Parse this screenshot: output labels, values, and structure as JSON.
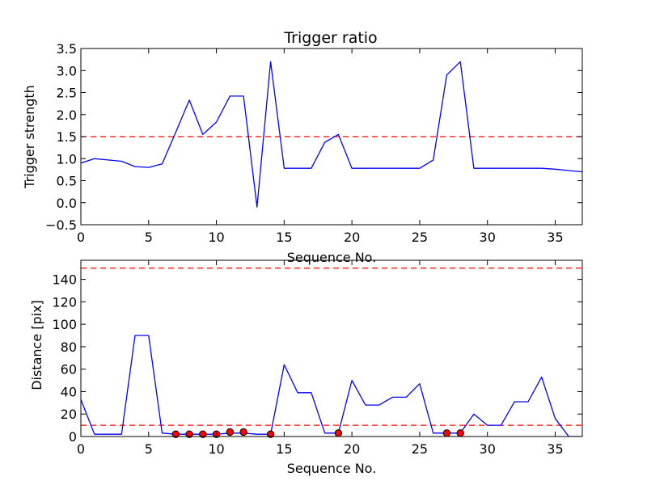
{
  "chart_data": [
    {
      "type": "line",
      "title": "Trigger ratio",
      "xlabel": "Sequence No.",
      "ylabel": "Trigger strength",
      "xlim": [
        0,
        37
      ],
      "ylim": [
        -0.5,
        3.5
      ],
      "xticks": [
        0,
        5,
        10,
        15,
        20,
        25,
        30,
        35
      ],
      "xtick_labels": [
        "0",
        "5",
        "10",
        "15",
        "20",
        "25",
        "30",
        "35"
      ],
      "yticks": [
        -0.5,
        0.0,
        0.5,
        1.0,
        1.5,
        2.0,
        2.5,
        3.0,
        3.5
      ],
      "ytick_labels": [
        "−0.5",
        "0.0",
        "0.5",
        "1.0",
        "1.5",
        "2.0",
        "2.5",
        "3.0",
        "3.5"
      ],
      "grid": false,
      "series": [
        {
          "color": "#0000ff",
          "x": [
            0,
            1,
            2,
            3,
            4,
            5,
            6,
            7,
            8,
            9,
            10,
            11,
            12,
            13,
            14,
            15,
            16,
            17,
            18,
            19,
            20,
            21,
            22,
            23,
            24,
            25,
            26,
            27,
            28,
            29,
            30,
            31,
            32,
            33,
            34,
            35,
            36,
            37
          ],
          "y": [
            0.9,
            1.0,
            0.97,
            0.94,
            0.82,
            0.8,
            0.88,
            1.6,
            2.33,
            1.55,
            1.83,
            2.42,
            2.42,
            -0.1,
            3.2,
            0.78,
            0.78,
            0.78,
            1.37,
            1.55,
            0.78,
            0.78,
            0.78,
            0.78,
            0.78,
            0.78,
            0.97,
            2.9,
            3.2,
            0.78,
            0.78,
            0.78,
            0.78,
            0.78,
            0.78,
            0.76,
            0.73,
            0.7
          ]
        }
      ],
      "reference_lines": [
        {
          "y": 1.5,
          "color": "#ff0000",
          "style": "dashed"
        }
      ]
    },
    {
      "type": "line",
      "title": "",
      "xlabel": "Sequence No.",
      "ylabel": "Distance [pix]",
      "xlim": [
        0,
        37
      ],
      "ylim": [
        0,
        157
      ],
      "xticks": [
        0,
        5,
        10,
        15,
        20,
        25,
        30,
        35
      ],
      "xtick_labels": [
        "0",
        "5",
        "10",
        "15",
        "20",
        "25",
        "30",
        "35"
      ],
      "yticks": [
        0,
        20,
        40,
        60,
        80,
        100,
        120,
        140
      ],
      "ytick_labels": [
        "0",
        "20",
        "40",
        "60",
        "80",
        "100",
        "120",
        "140"
      ],
      "grid": false,
      "series": [
        {
          "color": "#0000ff",
          "x": [
            0,
            1,
            2,
            3,
            4,
            5,
            6,
            7,
            8,
            9,
            10,
            11,
            12,
            13,
            14,
            15,
            16,
            17,
            18,
            19,
            20,
            21,
            22,
            23,
            24,
            25,
            26,
            27,
            28,
            29,
            30,
            31,
            32,
            33,
            34,
            35,
            36,
            37
          ],
          "y": [
            33,
            2,
            2,
            2,
            90,
            90,
            3,
            2,
            2,
            2,
            2,
            3,
            3,
            2,
            2,
            64,
            39,
            39,
            3,
            3,
            50,
            28,
            28,
            35,
            35,
            47,
            3,
            3,
            3,
            20,
            10,
            10,
            31,
            31,
            53,
            16,
            0,
            0
          ]
        },
        {
          "color": "#ff0000",
          "marker": "circle",
          "x": [
            7,
            8,
            9,
            10,
            11,
            12,
            14,
            19,
            27,
            28
          ],
          "y": [
            2,
            2,
            2,
            2,
            4,
            4,
            2,
            3,
            3,
            3
          ]
        }
      ],
      "reference_lines": [
        {
          "y": 10,
          "color": "#ff0000",
          "style": "dashed"
        },
        {
          "y": 150,
          "color": "#ff0000",
          "style": "dashed"
        }
      ]
    }
  ]
}
